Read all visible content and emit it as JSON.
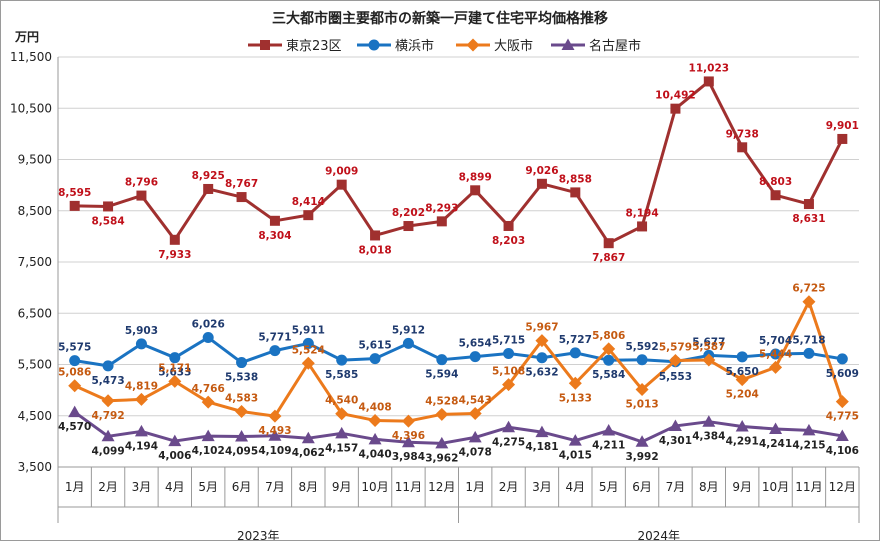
{
  "chart_data": {
    "type": "line",
    "title": "三大都市圏主要都市の新築一戸建て住宅平均価格推移",
    "ylabel": "万円",
    "ylim": [
      3500,
      11500
    ],
    "yticks": [
      "3,500",
      "4,500",
      "5,500",
      "6,500",
      "7,500",
      "8,500",
      "9,500",
      "10,500",
      "11,500"
    ],
    "categories": [
      "1月",
      "2月",
      "3月",
      "4月",
      "5月",
      "6月",
      "7月",
      "8月",
      "9月",
      "10月",
      "11月",
      "12月",
      "1月",
      "2月",
      "3月",
      "4月",
      "5月",
      "6月",
      "7月",
      "8月",
      "9月",
      "10月",
      "11月",
      "12月"
    ],
    "year_groups": [
      {
        "label": "2023年",
        "start": 0,
        "end": 11
      },
      {
        "label": "2024年",
        "start": 12,
        "end": 23
      }
    ],
    "grid": true,
    "legend_position": "top",
    "series": [
      {
        "name": "東京23区",
        "color": "#a0302f",
        "marker": "square",
        "values": [
          8595,
          8584,
          8796,
          7933,
          8925,
          8767,
          8304,
          8414,
          9009,
          8018,
          8202,
          8293,
          8899,
          8203,
          9026,
          8858,
          7867,
          8194,
          10492,
          11023,
          9738,
          8803,
          8631,
          9901
        ],
        "labels": [
          "8,595",
          "8,584",
          "8,796",
          "7,933",
          "8,925",
          "8,767",
          "8,304",
          "8,414",
          "9,009",
          "8,018",
          "8,202",
          "8,293",
          "8,899",
          "8,203",
          "9,026",
          "8,858",
          "7,867",
          "8,194",
          "10,492",
          "11,023",
          "9,738",
          "8,803",
          "8,631",
          "9,901"
        ],
        "label_color": "#c0101a"
      },
      {
        "name": "横浜市",
        "color": "#1a73c2",
        "marker": "circle",
        "values": [
          5575,
          5473,
          5903,
          5633,
          6026,
          5538,
          5771,
          5911,
          5585,
          5615,
          5912,
          5594,
          5654,
          5715,
          5632,
          5727,
          5584,
          5592,
          5553,
          5677,
          5650,
          5704,
          5718,
          5609
        ],
        "labels": [
          "5,575",
          "5,473",
          "5,903",
          "5,633",
          "6,026",
          "5,538",
          "5,771",
          "5,911",
          "5,585",
          "5,615",
          "5,912",
          "5,594",
          "5,654",
          "5,715",
          "5,632",
          "5,727",
          "5,584",
          "5,592",
          "5,553",
          "5,677",
          "5,650",
          "5,704",
          "5,718",
          "5,609"
        ],
        "label_color": "#1f3a6e"
      },
      {
        "name": "大阪市",
        "color": "#ec7a1c",
        "marker": "diamond",
        "values": [
          5086,
          4792,
          4819,
          5171,
          4766,
          4583,
          4493,
          5524,
          4540,
          4408,
          4396,
          4528,
          4543,
          5108,
          5967,
          5133,
          5806,
          5013,
          5579,
          5587,
          5204,
          5444,
          6725,
          4775
        ],
        "labels": [
          "5,086",
          "4,792",
          "4,819",
          "5,171",
          "4,766",
          "4,583",
          "4,493",
          "5,524",
          "4,540",
          "4,408",
          "4,396",
          "4,528",
          "4,543",
          "5,108",
          "5,967",
          "5,133",
          "5,806",
          "5,013",
          "5,579",
          "5,587",
          "5,204",
          "5,444",
          "6,725",
          "4,775"
        ],
        "label_color": "#c55a11"
      },
      {
        "name": "名古屋市",
        "color": "#6a4a8c",
        "marker": "triangle",
        "values": [
          4570,
          4099,
          4194,
          4006,
          4102,
          4095,
          4109,
          4062,
          4157,
          4040,
          3984,
          3962,
          4078,
          4275,
          4181,
          4015,
          4211,
          3992,
          4301,
          4384,
          4291,
          4241,
          4215,
          4106
        ],
        "labels": [
          "4,570",
          "4,099",
          "4,194",
          "4,006",
          "4,102",
          "4,095",
          "4,109",
          "4,062",
          "4,157",
          "4,040",
          "3,984",
          "3,962",
          "4,078",
          "4,275",
          "4,181",
          "4,015",
          "4,211",
          "3,992",
          "4,301",
          "4,384",
          "4,291",
          "4,241",
          "4,215",
          "4,106"
        ],
        "label_color": "#222222"
      }
    ]
  }
}
